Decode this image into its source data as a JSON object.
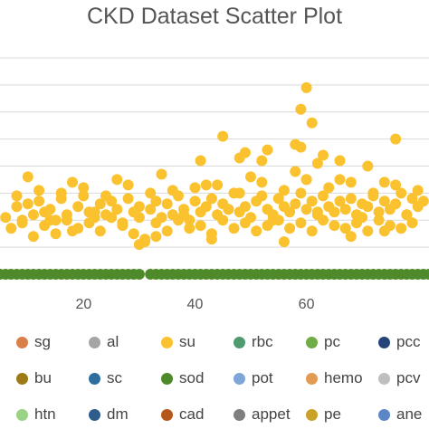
{
  "chart_data": {
    "type": "scatter",
    "title": "CKD Dataset Scatter Plot",
    "xlabel": "",
    "ylabel": "",
    "xticks": [
      20,
      40,
      60
    ],
    "xlim": [
      5,
      82
    ],
    "ylim": [
      0,
      8
    ],
    "grid": true,
    "legend_position": "bottom",
    "series": [
      {
        "name": "sg",
        "color": "#d9804a",
        "x": [],
        "y": []
      },
      {
        "name": "al",
        "color": "#a5a5a5",
        "x": [],
        "y": []
      },
      {
        "name": "su",
        "color": "#fbc230",
        "x": [
          6,
          8,
          9,
          10,
          11,
          12,
          13,
          14,
          15,
          16,
          17,
          18,
          19,
          20,
          21,
          22,
          23,
          24,
          25,
          26,
          27,
          28,
          29,
          30,
          31,
          32,
          33,
          34,
          35,
          36,
          37,
          38,
          39,
          40,
          41,
          42,
          43,
          44,
          45,
          46,
          47,
          48,
          49,
          50,
          51,
          52,
          53,
          54,
          55,
          56,
          57,
          58,
          59,
          60,
          61,
          62,
          63,
          64,
          65,
          66,
          67,
          68,
          69,
          70,
          71,
          72,
          73,
          74,
          75,
          76,
          77,
          78,
          79,
          80,
          81,
          7,
          9,
          11,
          13,
          15,
          17,
          19,
          21,
          23,
          25,
          27,
          29,
          31,
          33,
          35,
          37,
          39,
          41,
          43,
          45,
          47,
          49,
          51,
          53,
          55,
          57,
          59,
          61,
          63,
          65,
          67,
          69,
          71,
          73,
          75,
          77,
          79,
          8,
          12,
          16,
          20,
          24,
          28,
          32,
          36,
          40,
          44,
          48,
          52,
          56,
          60,
          64,
          68,
          72,
          76,
          80,
          10,
          18,
          26,
          34,
          42,
          50,
          58,
          66,
          74,
          14,
          22,
          30,
          38,
          46,
          54,
          62,
          70,
          78,
          45,
          48,
          52,
          58,
          59,
          60,
          60,
          61,
          62,
          66,
          76,
          30,
          33,
          41,
          43,
          49,
          53,
          56,
          59,
          63,
          68,
          71,
          74
        ],
        "y": [
          2.1,
          2.5,
          1.9,
          2.6,
          2.2,
          2.7,
          2.3,
          2.4,
          2.0,
          2.8,
          2.2,
          1.6,
          2.5,
          2.9,
          2.3,
          2.1,
          2.6,
          2.2,
          2.7,
          2.4,
          1.9,
          2.8,
          2.3,
          2.5,
          1.3,
          2.4,
          2.7,
          2.1,
          2.6,
          2.2,
          2.9,
          2.4,
          2.0,
          2.7,
          2.3,
          2.5,
          2.8,
          2.2,
          2.6,
          2.4,
          3.0,
          2.3,
          2.5,
          2.1,
          2.7,
          2.9,
          2.4,
          2.2,
          2.8,
          2.5,
          2.3,
          2.6,
          3.0,
          2.4,
          2.7,
          2.2,
          2.9,
          2.5,
          2.3,
          2.7,
          2.4,
          2.8,
          2.2,
          2.6,
          2.5,
          2.9,
          2.3,
          2.7,
          2.4,
          2.6,
          3.0,
          2.2,
          2.8,
          2.5,
          2.7,
          1.7,
          2.0,
          1.4,
          1.8,
          1.5,
          2.0,
          1.7,
          1.9,
          1.6,
          2.1,
          1.8,
          1.5,
          1.2,
          1.9,
          1.6,
          2.0,
          1.7,
          1.8,
          1.5,
          2.0,
          1.7,
          1.9,
          1.6,
          1.8,
          2.0,
          1.7,
          1.9,
          1.6,
          2.0,
          1.8,
          1.7,
          1.9,
          1.6,
          2.0,
          1.8,
          1.7,
          1.9,
          2.9,
          3.1,
          3.0,
          3.2,
          2.9,
          3.3,
          3.0,
          3.1,
          3.2,
          3.3,
          3.0,
          3.4,
          3.1,
          3.5,
          3.2,
          3.4,
          3.0,
          3.3,
          3.1,
          3.6,
          3.4,
          3.5,
          3.7,
          3.3,
          3.6,
          3.8,
          3.5,
          3.4,
          2.0,
          2.3,
          2.1,
          2.2,
          2.4,
          2.0,
          2.3,
          2.1,
          2.2,
          5.1,
          4.3,
          4.2,
          4.8,
          6.1,
          6.9,
          3.5,
          5.6,
          4.1,
          4.2,
          5.0,
          1.1,
          1.4,
          4.2,
          1.3,
          4.5,
          4.6,
          1.2,
          4.7,
          4.4,
          1.4,
          4.0,
          1.6
        ]
      },
      {
        "name": "rbc",
        "color": "#4f9a6e",
        "x": [],
        "y": []
      },
      {
        "name": "pc",
        "color": "#70ad47",
        "x": [],
        "y": []
      },
      {
        "name": "pcc",
        "color": "#264478",
        "x": [],
        "y": []
      },
      {
        "name": "bu",
        "color": "#9e7a16",
        "x": [],
        "y": []
      },
      {
        "name": "sc",
        "color": "#2f6f9f",
        "x": [],
        "y": []
      },
      {
        "name": "sod",
        "color": "#4e8a2a",
        "x": [
          5,
          6,
          7,
          8,
          9,
          10,
          11,
          12,
          13,
          14,
          15,
          16,
          17,
          18,
          19,
          20,
          21,
          22,
          23,
          24,
          25,
          26,
          27,
          28,
          29,
          30,
          32,
          33,
          34,
          35,
          36,
          37,
          38,
          39,
          40,
          41,
          42,
          43,
          44,
          45,
          46,
          47,
          48,
          49,
          50,
          51,
          52,
          53,
          54,
          55,
          56,
          57,
          58,
          59,
          60,
          61,
          62,
          63,
          64,
          65,
          66,
          67,
          68,
          69,
          70,
          71,
          72,
          73,
          74,
          75,
          76,
          77,
          78,
          79,
          80,
          81,
          82
        ],
        "y": [
          0,
          0,
          0,
          0,
          0,
          0,
          0,
          0,
          0,
          0,
          0,
          0,
          0,
          0,
          0,
          0,
          0,
          0,
          0,
          0,
          0,
          0,
          0,
          0,
          0,
          0,
          0,
          0,
          0,
          0,
          0,
          0,
          0,
          0,
          0,
          0,
          0,
          0,
          0,
          0,
          0,
          0,
          0,
          0,
          0,
          0,
          0,
          0,
          0,
          0,
          0,
          0,
          0,
          0,
          0,
          0,
          0,
          0,
          0,
          0,
          0,
          0,
          0,
          0,
          0,
          0,
          0,
          0,
          0,
          0,
          0,
          0,
          0,
          0,
          0,
          0,
          0
        ]
      },
      {
        "name": "pot",
        "color": "#7ea6d6",
        "x": [],
        "y": []
      },
      {
        "name": "hemo",
        "color": "#e39a52",
        "x": [],
        "y": []
      },
      {
        "name": "pcv",
        "color": "#bfbfbf",
        "x": [],
        "y": []
      },
      {
        "name": "htn",
        "color": "#9bd385",
        "x": [],
        "y": []
      },
      {
        "name": "dm",
        "color": "#2e5d8c",
        "x": [],
        "y": []
      },
      {
        "name": "cad",
        "color": "#b5561a",
        "x": [],
        "y": []
      },
      {
        "name": "appet",
        "color": "#7f7f7f",
        "x": [],
        "y": []
      },
      {
        "name": "pe",
        "color": "#c9a227",
        "x": [],
        "y": []
      },
      {
        "name": "ane",
        "color": "#5b87c7",
        "x": [],
        "y": []
      }
    ]
  }
}
